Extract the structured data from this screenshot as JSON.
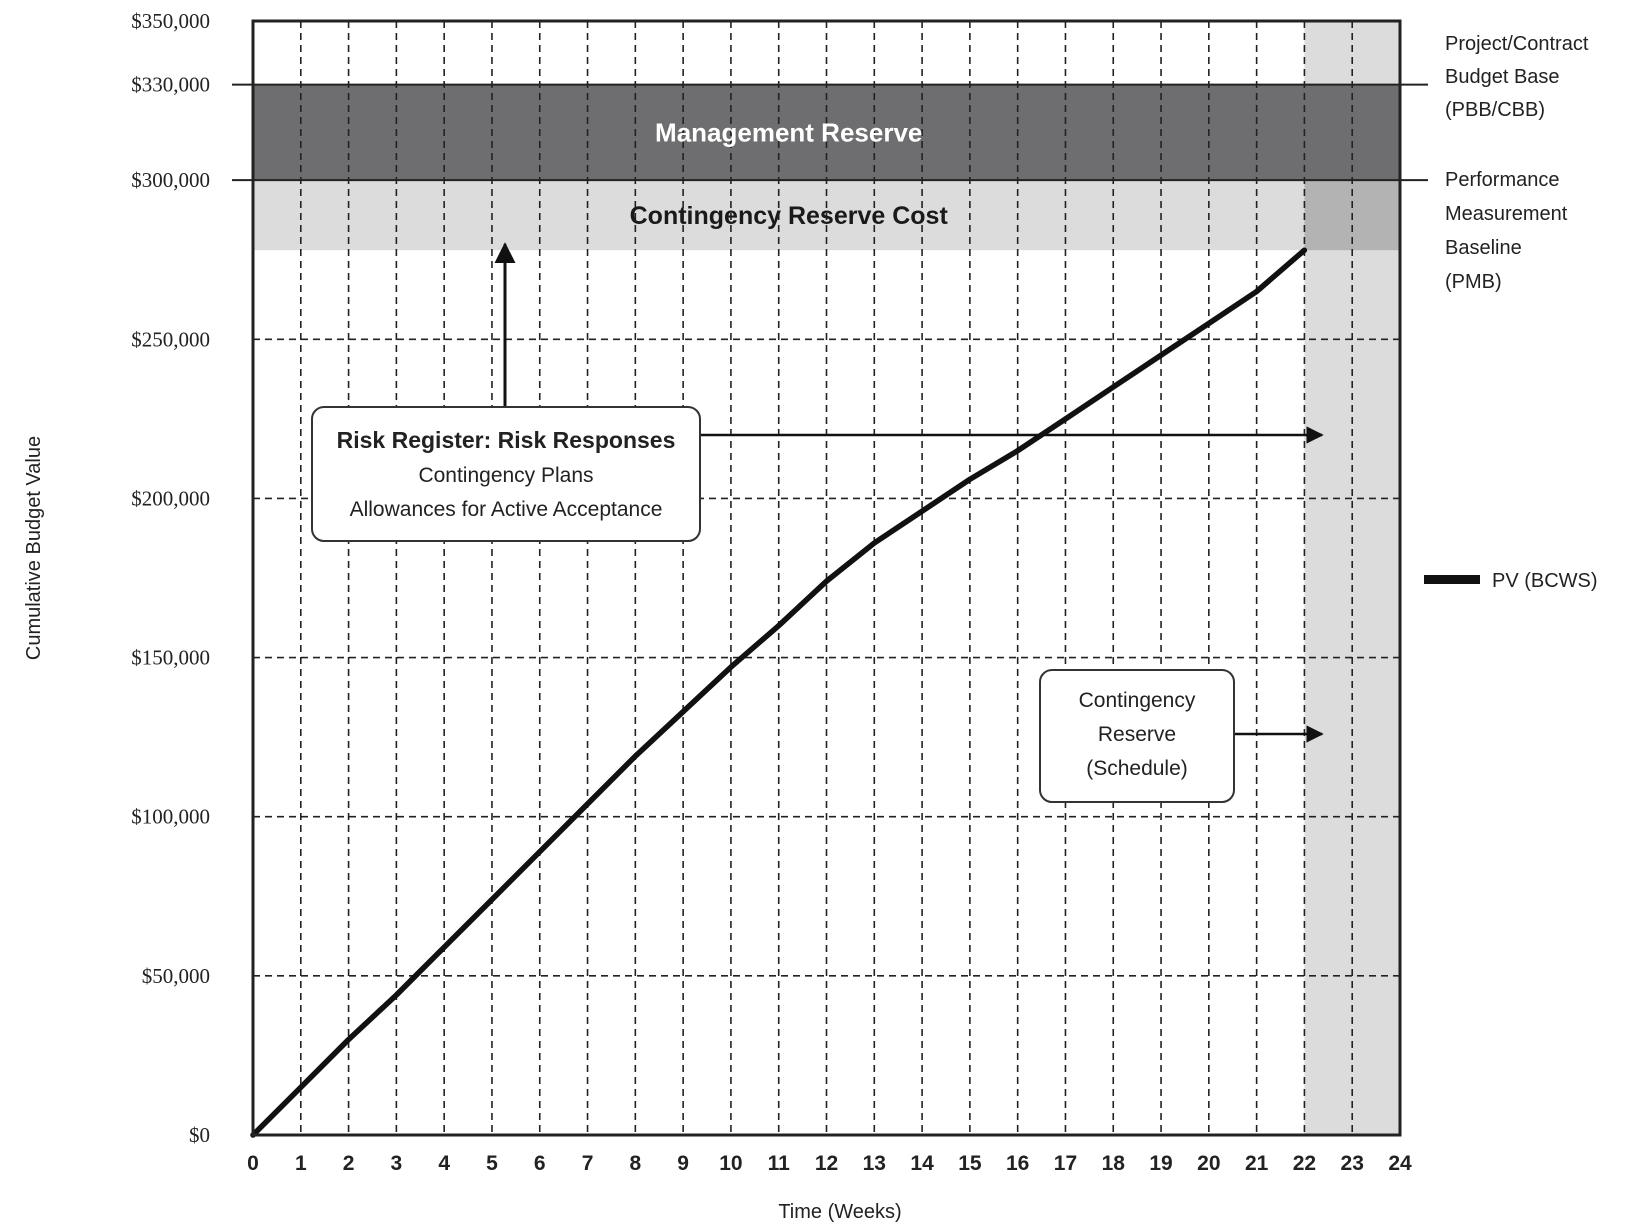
{
  "chart_data": {
    "type": "line",
    "xlabel": "Time (Weeks)",
    "ylabel": "Cumulative Budget Value",
    "x_ticks": [
      0,
      1,
      2,
      3,
      4,
      5,
      6,
      7,
      8,
      9,
      10,
      11,
      12,
      13,
      14,
      15,
      16,
      17,
      18,
      19,
      20,
      21,
      22,
      23,
      24
    ],
    "xlim": [
      0,
      24
    ],
    "y_ticks": [
      0,
      50000,
      100000,
      150000,
      200000,
      250000,
      300000,
      330000,
      350000
    ],
    "y_tick_labels": [
      "$0",
      "$50,000",
      "$100,000",
      "$150,000",
      "$200,000",
      "$250,000",
      "$300,000",
      "$330,000",
      "$350,000"
    ],
    "ylim": [
      0,
      350000
    ],
    "grid": true,
    "series": [
      {
        "name": "PV (BCWS)",
        "color": "#111111",
        "x": [
          0,
          1,
          2,
          3,
          4,
          5,
          6,
          7,
          8,
          9,
          10,
          11,
          12,
          13,
          14,
          15,
          16,
          17,
          18,
          19,
          20,
          21,
          22
        ],
        "y": [
          0,
          15000,
          30000,
          44000,
          59000,
          74000,
          89000,
          104000,
          119000,
          133000,
          147000,
          160000,
          174000,
          186000,
          196000,
          206000,
          215000,
          225000,
          235000,
          245000,
          255000,
          265000,
          278000
        ]
      }
    ],
    "bands": [
      {
        "label": "Management Reserve",
        "y_from": 300000,
        "y_to": 330000,
        "x_from": 0,
        "x_to": 24,
        "color": "#6e6e70",
        "text_color": "#ffffff"
      },
      {
        "label": "Contingency Reserve Cost",
        "y_from": 278000,
        "y_to": 300000,
        "x_from": 0,
        "x_to": 22,
        "color": "#dcdcdc",
        "text_color": "#1a1a1a"
      }
    ],
    "schedule_reserve": {
      "x_from": 22,
      "x_to": 24,
      "color": "#dcdcdc",
      "overlap_color": "#b3b3b3"
    },
    "reference_lines": [
      {
        "y": 330000,
        "label_lines": [
          "Project/Contract",
          "Budget Base",
          "(PBB/CBB)"
        ]
      },
      {
        "y": 300000,
        "label_lines": [
          "Performance",
          "Measurement",
          "Baseline",
          "(PMB)"
        ]
      }
    ],
    "annotations": [
      {
        "id": "risk-register",
        "lines": [
          "Risk Register: Risk Responses",
          "Contingency Plans",
          "Allowances for Active Acceptance"
        ]
      },
      {
        "id": "contingency-schedule",
        "lines": [
          "Contingency",
          "Reserve",
          "(Schedule)"
        ]
      }
    ],
    "legend": {
      "position": "right",
      "entries": [
        {
          "label": "PV (BCWS)",
          "color": "#111111"
        }
      ]
    }
  }
}
